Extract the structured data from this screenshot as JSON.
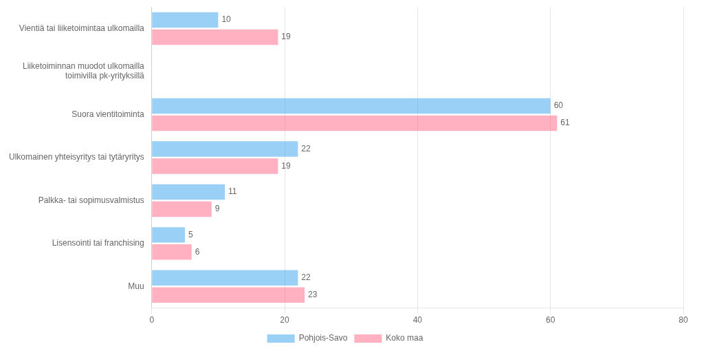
{
  "chart_data": {
    "type": "bar",
    "orientation": "horizontal",
    "categories": [
      "Vientiä tai liiketoimintaa ulkomailla",
      "Liiketoiminnan muodot ulkomailla\ntoimivilla pk-yrityksillä",
      "Suora vientitoiminta",
      "Ulkomainen yhteisyritys tai tytäryritys",
      "Palkka- tai sopimusvalmistus",
      "Lisensointi tai franchising",
      "Muu"
    ],
    "series": [
      {
        "name": "Pohjois-Savo",
        "values": [
          10,
          null,
          60,
          22,
          11,
          5,
          22
        ]
      },
      {
        "name": "Koko maa",
        "values": [
          19,
          null,
          61,
          19,
          9,
          6,
          23
        ]
      }
    ],
    "xlim": [
      0,
      80
    ],
    "xticks": [
      0,
      20,
      40,
      60,
      80
    ],
    "grid": true,
    "legend": "bottom",
    "data_labels": true
  }
}
